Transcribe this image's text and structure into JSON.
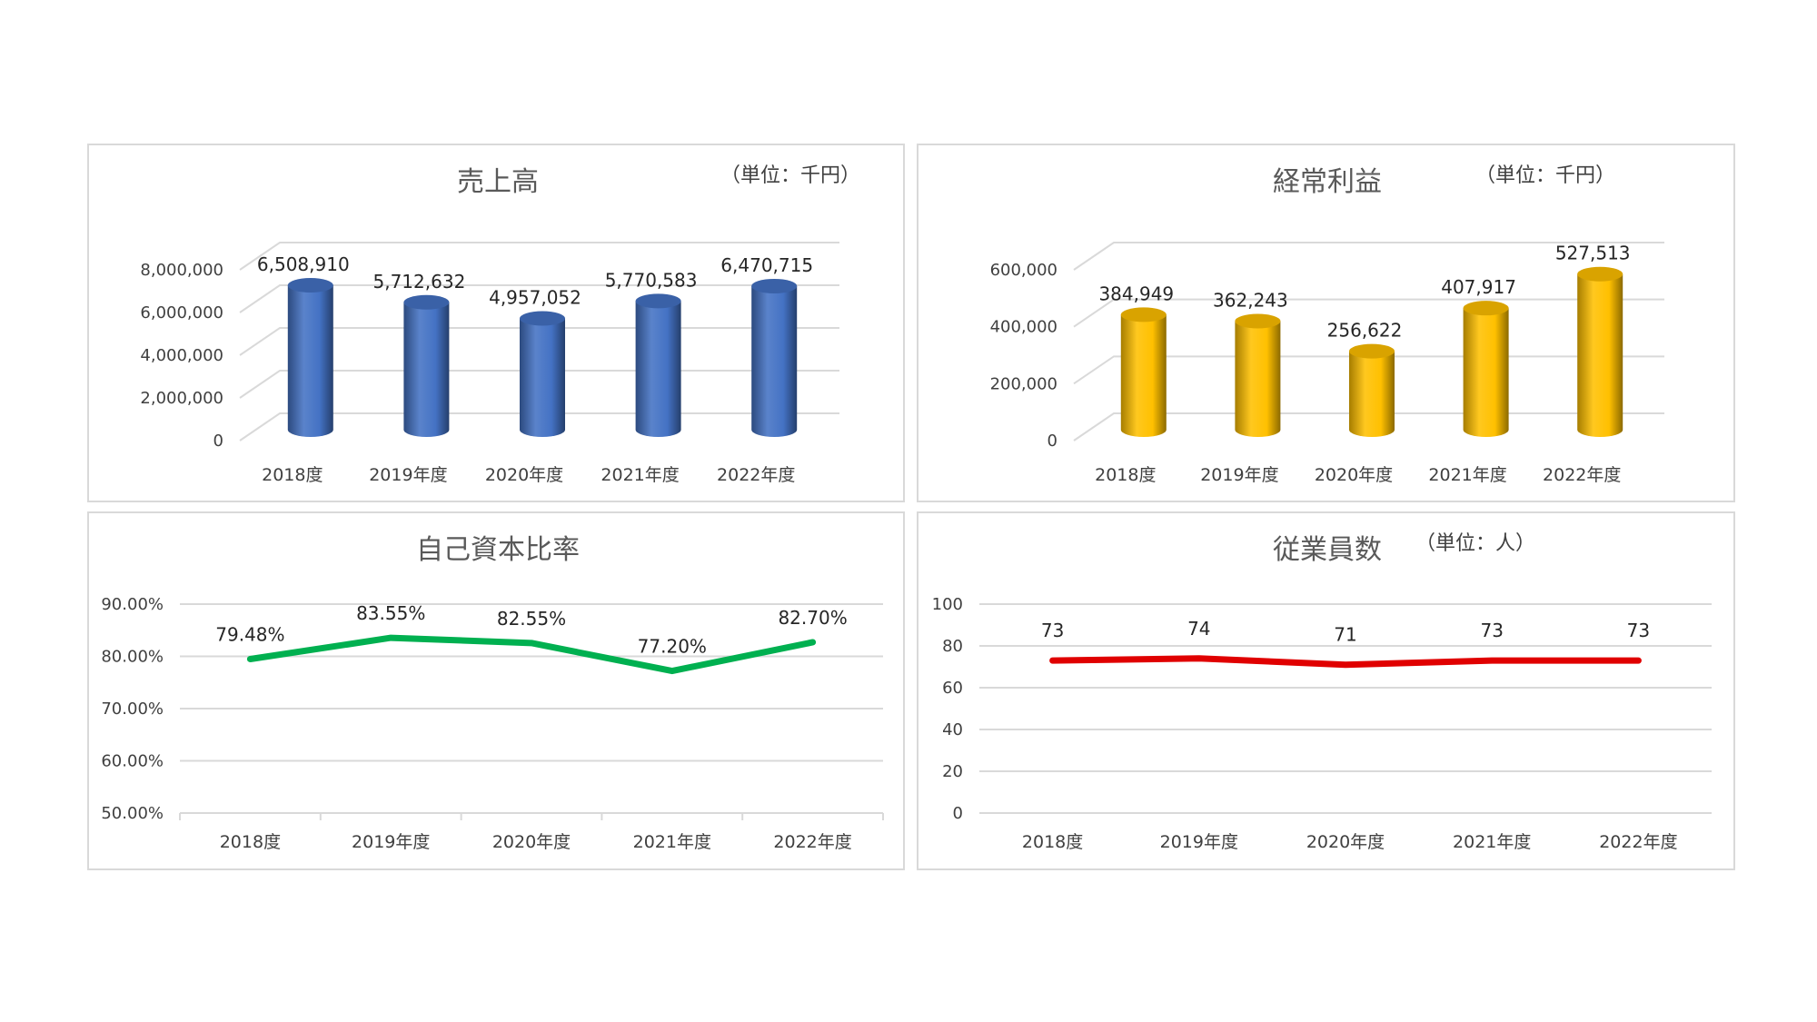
{
  "chart_data": [
    {
      "type": "bar",
      "title": "売上高",
      "unit": "（単位：千円）",
      "categories": [
        "2018度",
        "2019年度",
        "2020年度",
        "2021年度",
        "2022年度"
      ],
      "values": [
        6508910,
        5712632,
        4957052,
        5770583,
        6470715
      ],
      "value_labels": [
        "6,508,910",
        "5,712,632",
        "4,957,052",
        "5,770,583",
        "6,470,715"
      ],
      "ylim": [
        0,
        8000000
      ],
      "ticks": [
        0,
        2000000,
        4000000,
        6000000,
        8000000
      ],
      "tick_labels": [
        "0",
        "2,000,000",
        "4,000,000",
        "6,000,000",
        "8,000,000"
      ],
      "grid": true,
      "style": "3d-cylinder",
      "color": "#4472c4"
    },
    {
      "type": "bar",
      "title": "経常利益",
      "unit": "（単位：千円）",
      "categories": [
        "2018度",
        "2019年度",
        "2020年度",
        "2021年度",
        "2022年度"
      ],
      "values": [
        384949,
        362243,
        256622,
        407917,
        527513
      ],
      "value_labels": [
        "384,949",
        "362,243",
        "256,622",
        "407,917",
        "527,513"
      ],
      "ylim": [
        0,
        600000
      ],
      "ticks": [
        0,
        200000,
        400000,
        600000
      ],
      "tick_labels": [
        "0",
        "200,000",
        "400,000",
        "600,000"
      ],
      "grid": true,
      "style": "3d-cylinder",
      "color": "#ffc000"
    },
    {
      "type": "line",
      "title": "自己資本比率",
      "categories": [
        "2018度",
        "2019年度",
        "2020年度",
        "2021年度",
        "2022年度"
      ],
      "values": [
        79.48,
        83.55,
        82.55,
        77.2,
        82.7
      ],
      "value_labels": [
        "79.48%",
        "83.55%",
        "82.55%",
        "77.20%",
        "82.70%"
      ],
      "ylim": [
        50,
        90
      ],
      "ticks": [
        50,
        60,
        70,
        80,
        90
      ],
      "tick_labels": [
        "50.00%",
        "60.00%",
        "70.00%",
        "80.00%",
        "90.00%"
      ],
      "grid": true,
      "color": "#00b050"
    },
    {
      "type": "line",
      "title": "従業員数",
      "unit": "（単位：人）",
      "categories": [
        "2018度",
        "2019年度",
        "2020年度",
        "2021年度",
        "2022年度"
      ],
      "values": [
        73,
        74,
        71,
        73,
        73
      ],
      "value_labels": [
        "73",
        "74",
        "71",
        "73",
        "73"
      ],
      "ylim": [
        0,
        100
      ],
      "ticks": [
        0,
        20,
        40,
        60,
        80,
        100
      ],
      "tick_labels": [
        "0",
        "20",
        "40",
        "60",
        "80",
        "100"
      ],
      "grid": true,
      "color": "#e00000"
    }
  ]
}
